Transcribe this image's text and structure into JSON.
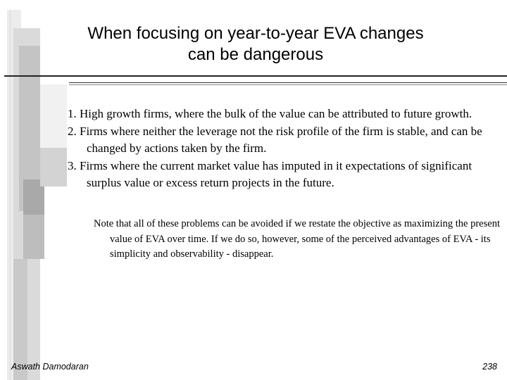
{
  "slide": {
    "title_line1": "When focusing on year-to-year EVA changes",
    "title_line2": "can be dangerous",
    "points": [
      "1. High growth firms, where the bulk of the value can be attributed to future growth.",
      "2. Firms where neither the leverage not the risk profile of the firm is stable, and can be changed by actions taken by the firm.",
      "3. Firms where the current market value has imputed in it expectations of significant surplus value or excess return projects in the future."
    ],
    "note": "Note that all of these problems can be avoided if we restate the objective as maximizing the present value of EVA over time. If we do so, however, some of the perceived advantages of EVA - its simplicity and observability - disappear."
  },
  "footer": {
    "author": "Aswath Damodaran",
    "page_number": "238"
  },
  "colors": {
    "bar_light": "#e6e6e6",
    "bar_mid": "#c8c8c8",
    "bar_dark": "#a8a8a8"
  }
}
